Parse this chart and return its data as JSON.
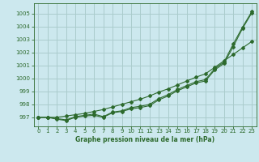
{
  "title": "Graphe pression niveau de la mer (hPa)",
  "bg_color": "#cce8ee",
  "grid_color": "#aacccc",
  "line_color": "#2d6a2d",
  "x_ticks": [
    0,
    1,
    2,
    3,
    4,
    5,
    6,
    7,
    8,
    9,
    10,
    11,
    12,
    13,
    14,
    15,
    16,
    17,
    18,
    19,
    20,
    21,
    22,
    23
  ],
  "y_ticks": [
    997,
    998,
    999,
    1000,
    1001,
    1002,
    1003,
    1004,
    1005
  ],
  "ylim": [
    996.3,
    1005.8
  ],
  "xlim": [
    -0.5,
    23.5
  ],
  "line1": [
    997.0,
    997.0,
    996.85,
    996.75,
    997.0,
    997.1,
    997.15,
    997.0,
    997.35,
    997.45,
    997.65,
    997.75,
    997.9,
    998.35,
    998.65,
    999.05,
    999.35,
    999.65,
    999.8,
    1000.65,
    1001.15,
    1002.45,
    1003.85,
    1005.05
  ],
  "line2": [
    997.0,
    997.0,
    996.9,
    996.8,
    997.05,
    997.15,
    997.25,
    997.05,
    997.4,
    997.5,
    997.75,
    997.85,
    998.0,
    998.45,
    998.75,
    999.15,
    999.45,
    999.75,
    999.9,
    1000.75,
    1001.25,
    1002.65,
    1003.95,
    1005.15
  ],
  "line3": [
    997.0,
    997.0,
    997.0,
    997.1,
    997.2,
    997.3,
    997.45,
    997.6,
    997.8,
    998.0,
    998.2,
    998.4,
    998.65,
    998.95,
    999.2,
    999.5,
    999.8,
    1000.1,
    1000.35,
    1000.85,
    1001.35,
    1001.85,
    1002.35,
    1002.85
  ]
}
